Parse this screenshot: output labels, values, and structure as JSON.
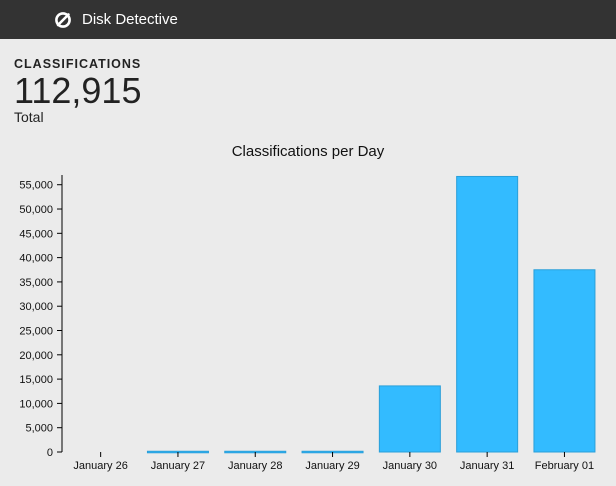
{
  "header": {
    "app_name": "Disk Detective",
    "logo_icon": "null-circle-icon",
    "background": "#333333"
  },
  "stats": {
    "label": "CLASSIFICATIONS",
    "value": "112,915",
    "sublabel": "Total"
  },
  "chart_data": {
    "type": "bar",
    "title": "Classifications per Day",
    "xlabel": "",
    "ylabel": "",
    "categories": [
      "January 26",
      "January 27",
      "January 28",
      "January 29",
      "January 30",
      "January 31",
      "February 01"
    ],
    "values": [
      0,
      150,
      150,
      150,
      13600,
      56700,
      37500
    ],
    "ylim": [
      0,
      57000
    ],
    "yticks": [
      0,
      5000,
      10000,
      15000,
      20000,
      25000,
      30000,
      35000,
      40000,
      45000,
      50000,
      55000
    ],
    "ytick_labels": [
      "0",
      "5,000",
      "10,000",
      "15,000",
      "20,000",
      "25,000",
      "30,000",
      "35,000",
      "40,000",
      "45,000",
      "50,000",
      "55,000"
    ],
    "bar_color": "#33bbff",
    "bar_edge_color": "#2a9fd9",
    "grid": false
  }
}
